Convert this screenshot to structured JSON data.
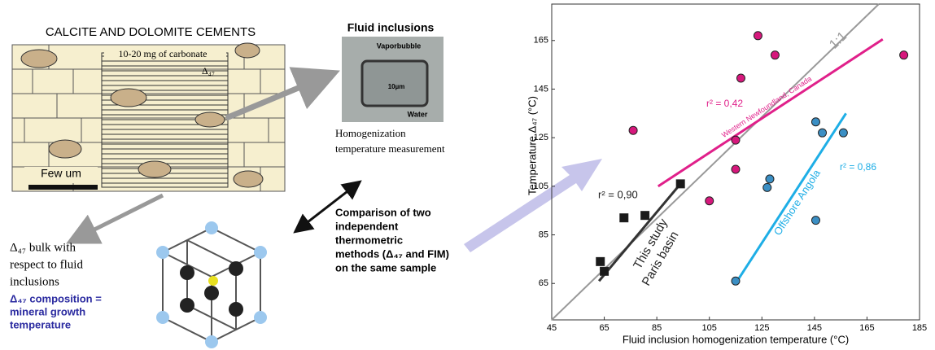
{
  "diagram": {
    "cement_title": "CALCITE AND DOLOMITE CEMENTS",
    "sample_label": "10-20 mg of carbonate",
    "delta_label": "Δ₄₇",
    "scale_label": "Few um",
    "photo_title": "Fluid inclusions",
    "photo_vapor": "Vaporbubble",
    "photo_scale": "10µm",
    "photo_water": "Water",
    "photo_caption": [
      "Homogenization",
      "temperature measurement"
    ],
    "bulk_text": [
      "Δ₄₇ bulk with",
      "respect to fluid",
      "inclusions"
    ],
    "composition_text": [
      "Δ₄₇ composition =",
      "mineral growth",
      "temperature"
    ],
    "comparison_text": [
      "Comparison of two",
      "independent",
      "thermometric",
      "methods (Δ₄₇ and FIM)",
      "on the same sample"
    ]
  },
  "chart_data": {
    "type": "scatter",
    "xlabel": "Fluid inclusion homogenization temperature (°C)",
    "ylabel": "Temperature Δ₄₇ (°C)",
    "xlim": [
      45,
      185
    ],
    "ylim": [
      50,
      180
    ],
    "xticks": [
      45,
      65,
      85,
      105,
      125,
      145,
      165,
      185
    ],
    "yticks": [
      65,
      85,
      105,
      125,
      145,
      165
    ],
    "series": [
      {
        "color": "#1a1a1a",
        "marker": "square",
        "x": [
          63.5,
          65,
          72.5,
          80.5,
          94
        ],
        "values": [
          74,
          70,
          92,
          93,
          106
        ]
      },
      {
        "color": "#d6187c",
        "marker": "circle",
        "x": [
          123.5,
          130,
          179,
          117,
          115,
          115,
          105,
          76
        ],
        "values": [
          167,
          159,
          159,
          149.5,
          124,
          112,
          99,
          128
        ]
      },
      {
        "color": "#3b8fc4",
        "marker": "circle",
        "x": [
          145.5,
          148,
          156,
          128,
          127,
          145.5,
          115
        ],
        "values": [
          131.5,
          127,
          127,
          108,
          104.5,
          91,
          66
        ]
      }
    ],
    "lines": [
      {
        "name": "1:1",
        "color": "#999999",
        "x": [
          45,
          169.5
        ],
        "y": [
          50,
          180
        ]
      },
      {
        "name": "Western Newfoundland, Canada",
        "color": "#e0208a",
        "x": [
          85.5,
          171
        ],
        "y": [
          105,
          165.5
        ]
      },
      {
        "name": "Offshore Angola",
        "color": "#1eaee6",
        "x": [
          115,
          157
        ],
        "y": [
          65,
          135
        ]
      },
      {
        "color": "#333333",
        "x": [
          63,
          94
        ],
        "y": [
          66,
          106
        ]
      }
    ],
    "annotations": [
      "r² = 0,90",
      "r² = 0,42",
      "r² = 0,86",
      "This study",
      "Paris basin"
    ]
  }
}
